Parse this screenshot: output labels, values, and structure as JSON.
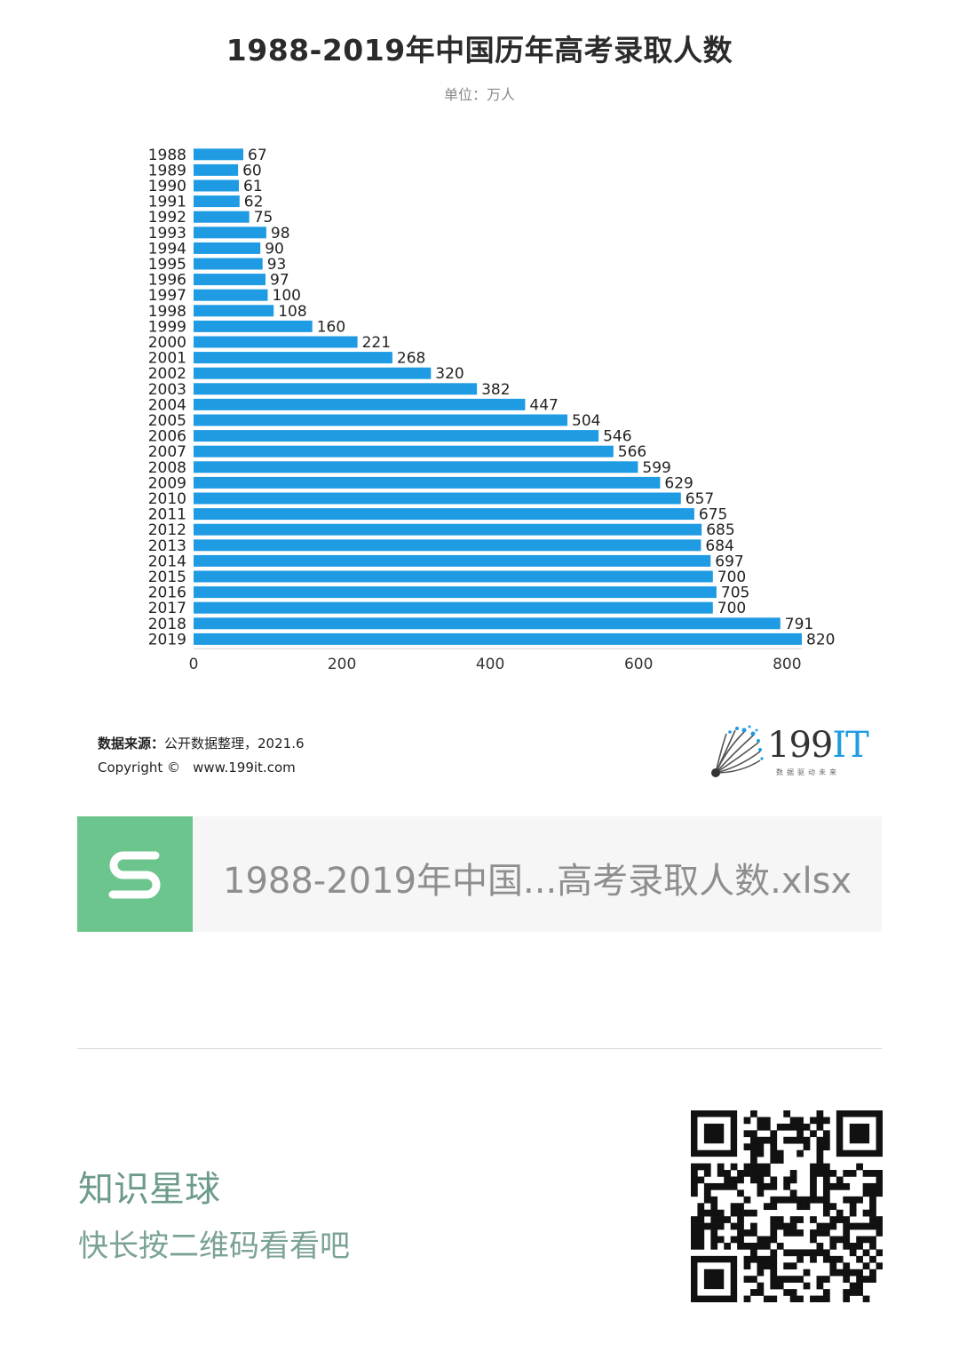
{
  "header": {
    "title": "1988-2019年中国历年高考录取人数",
    "subtitle": "单位：万人"
  },
  "chart_data": {
    "type": "bar",
    "orientation": "horizontal",
    "title": "1988-2019年中国历年高考录取人数",
    "subtitle": "单位：万人",
    "xlabel": "",
    "ylabel": "",
    "xlim": [
      0,
      820
    ],
    "xticks": [
      0,
      200,
      400,
      600,
      800
    ],
    "grid": false,
    "categories": [
      "1988",
      "1989",
      "1990",
      "1991",
      "1992",
      "1993",
      "1994",
      "1995",
      "1996",
      "1997",
      "1998",
      "1999",
      "2000",
      "2001",
      "2002",
      "2003",
      "2004",
      "2005",
      "2006",
      "2007",
      "2008",
      "2009",
      "2010",
      "2011",
      "2012",
      "2013",
      "2014",
      "2015",
      "2016",
      "2017",
      "2018",
      "2019"
    ],
    "values": [
      67,
      60,
      61,
      62,
      75,
      98,
      90,
      93,
      97,
      100,
      108,
      160,
      221,
      268,
      320,
      382,
      447,
      504,
      546,
      566,
      599,
      629,
      657,
      675,
      685,
      684,
      697,
      700,
      705,
      700,
      791,
      820
    ],
    "bar_color": "#1e9be3"
  },
  "footer": {
    "source_label": "数据来源：",
    "source_text": "公开数据整理，2021.6",
    "copyright": "Copyright ©",
    "url": "www.199it.com",
    "brand_number": "199",
    "brand_letters": "IT",
    "brand_tagline": "数据驱动未来"
  },
  "file_card": {
    "icon_letter": "S",
    "filename": "1988-2019年中国...高考录取人数.xlsx"
  },
  "promo": {
    "title": "知识星球",
    "subtitle": "快长按二维码看看吧"
  },
  "icons": {
    "file_icon": "spreadsheet-s-icon",
    "brand_logo": "dandelion-logo-icon",
    "qr": "qr-code-icon"
  }
}
